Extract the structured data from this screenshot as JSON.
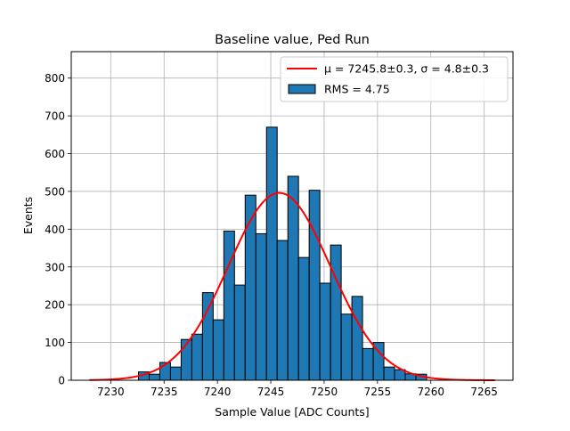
{
  "chart_data": {
    "type": "histogram",
    "title": "Baseline value, Ped Run",
    "xlabel": "Sample Value [ADC Counts]",
    "ylabel": "Events",
    "xlim": [
      7226.3,
      7267.7
    ],
    "ylim": [
      0,
      870
    ],
    "grid": true,
    "x_ticks": [
      7230,
      7235,
      7240,
      7245,
      7250,
      7255,
      7260,
      7265
    ],
    "y_ticks": [
      0,
      100,
      200,
      300,
      400,
      500,
      600,
      700,
      800
    ],
    "bin_width": 1,
    "bins": {
      "left_edges": [
        7232.6,
        7233.6,
        7234.6,
        7235.6,
        7236.6,
        7237.6,
        7238.6,
        7239.6,
        7240.6,
        7241.6,
        7242.6,
        7243.6,
        7244.6,
        7245.6,
        7246.6,
        7247.6,
        7248.6,
        7249.6,
        7250.6,
        7251.6,
        7252.6,
        7253.6,
        7254.6,
        7255.6,
        7256.6,
        7257.6,
        7258.6
      ],
      "counts": [
        22,
        16,
        47,
        35,
        108,
        122,
        232,
        160,
        395,
        252,
        490,
        388,
        670,
        370,
        540,
        325,
        503,
        257,
        358,
        175,
        222,
        84,
        100,
        35,
        28,
        17,
        16
      ]
    },
    "fit": {
      "name": "$\\mu=7245.8\\pm0.3$, $\\sigma=4.8\\pm0.3$",
      "mu": 7245.8,
      "sigma": 4.8,
      "amplitude": 496,
      "x_range": [
        7228,
        7266
      ],
      "color": "#ff0000"
    },
    "legend": {
      "position": "top-right",
      "entries": [
        {
          "label_prefix": "μ = 7245.8±0.3, σ = 4.8±0.3",
          "kind": "line",
          "color": "#ff0000"
        },
        {
          "label_prefix": "RMS = 4.75",
          "kind": "patch",
          "color": "#1f77b4"
        }
      ],
      "fit_label": "μ = 7245.8±0.3, σ = 4.8±0.3",
      "hist_label": "RMS = 4.75"
    },
    "bar_color": "#1f77b4",
    "bar_edge_color": "#000000"
  }
}
